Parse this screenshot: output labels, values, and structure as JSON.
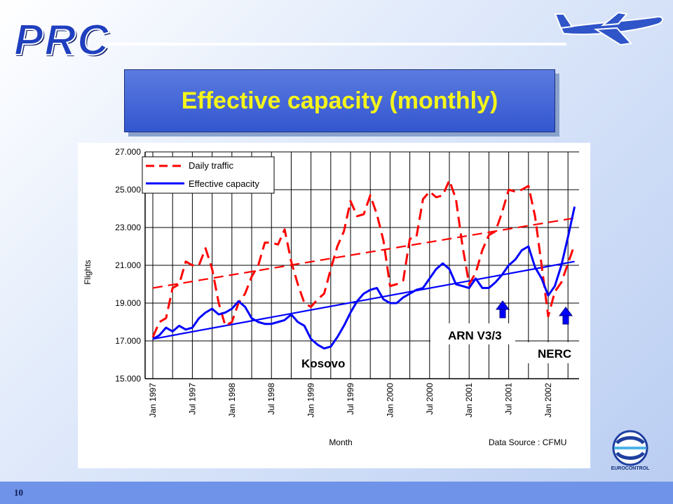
{
  "header": {
    "logo_text": "PRC",
    "title": "Effective capacity (monthly)"
  },
  "footer": {
    "page_number": "10",
    "eurocontrol_label": "EUROCONTROL"
  },
  "colors": {
    "daily_traffic": "#ff0000",
    "effective_capacity": "#0000ff",
    "title_text": "#f5f51a",
    "title_box": "#3a5bd6"
  },
  "chart_data": {
    "type": "line",
    "ylabel": "Flights",
    "xlabel": "Month",
    "source_note": "Data Source : CFMU",
    "ylim": [
      15000,
      27000
    ],
    "y_ticks": [
      "15.000",
      "17.000",
      "19.000",
      "21.000",
      "23.000",
      "25.000",
      "27.000"
    ],
    "x_ticks": [
      "Jan 1997",
      "Jul 1997",
      "Jan 1998",
      "Jul 1998",
      "Jan 1999",
      "Jul 1999",
      "Jan 2000",
      "Jul 2000",
      "Jan 2001",
      "Jul 2001",
      "Jan 2002"
    ],
    "x_start": "Jan 1997",
    "x_end": "Jul 2002",
    "grid": true,
    "legend_position": "top-left",
    "series": [
      {
        "name": "Daily traffic",
        "style": "dashed",
        "color": "#ff0000",
        "values": [
          17200,
          18000,
          18200,
          19800,
          20000,
          21200,
          21000,
          21000,
          21900,
          20800,
          19000,
          17800,
          18000,
          19000,
          19500,
          20400,
          21000,
          22200,
          22200,
          22100,
          22900,
          21200,
          20000,
          19000,
          18800,
          19200,
          19500,
          20800,
          22000,
          22800,
          24400,
          23600,
          23700,
          24700,
          23700,
          22300,
          19900,
          20000,
          20200,
          22400,
          22500,
          24500,
          24900,
          24600,
          24700,
          25500,
          24500,
          22000,
          20000,
          20600,
          21800,
          22600,
          22800,
          23800,
          25000,
          24900,
          25000,
          25200,
          23600,
          21000,
          18300,
          19600,
          20100,
          21100,
          22100
        ]
      },
      {
        "name": "Effective capacity",
        "style": "solid",
        "color": "#0000ff",
        "values": [
          17100,
          17300,
          17700,
          17500,
          17800,
          17600,
          17700,
          18200,
          18500,
          18700,
          18400,
          18500,
          18700,
          19100,
          18800,
          18200,
          18000,
          17900,
          17900,
          18000,
          18100,
          18400,
          18000,
          17800,
          17100,
          16800,
          16600,
          16700,
          17200,
          17800,
          18500,
          19100,
          19500,
          19700,
          19800,
          19200,
          19000,
          19000,
          19300,
          19500,
          19700,
          19800,
          20300,
          20800,
          21100,
          20800,
          20000,
          19900,
          19800,
          20300,
          19800,
          19800,
          20100,
          20500,
          21000,
          21300,
          21800,
          22000,
          20900,
          20300,
          19400,
          19900,
          21000,
          22500,
          24100
        ]
      }
    ],
    "trend_lines": [
      {
        "name": "Daily traffic trend",
        "style": "dashed",
        "color": "#ff0000",
        "start": 19800,
        "end": 23500
      },
      {
        "name": "Effective capacity trend",
        "style": "solid",
        "color": "#0000ff",
        "start": 17100,
        "end": 21200
      }
    ],
    "annotations": [
      "Kosovo",
      "ARN V3/3",
      "NERC"
    ]
  }
}
